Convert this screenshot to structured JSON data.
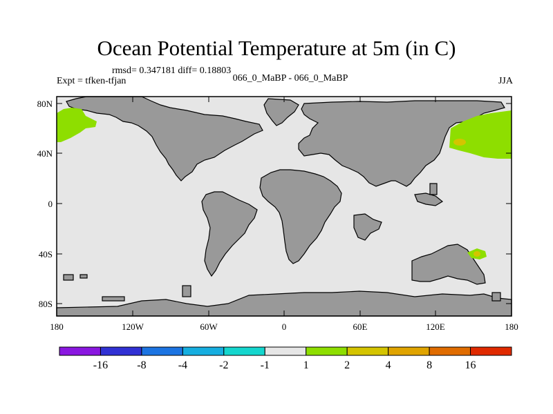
{
  "title": "Ocean Potential Temperature at 5m (in C)",
  "stats": "rmsd= 0.347181 diff= 0.18803",
  "experiment": "Expt = tfken-tfjan",
  "cases": "066_0_MaBP - 066_0_MaBP",
  "season": "JJA",
  "colors": {
    "ocean": "#e6e6e6",
    "land": "#999999",
    "positive": "#8ede00",
    "warm": "#d4c400"
  },
  "axes": {
    "lat_ticks": [
      "80N",
      "40N",
      "0",
      "40S",
      "80S"
    ],
    "lon_ticks": [
      "180",
      "120W",
      "60W",
      "0",
      "60E",
      "120E",
      "180"
    ]
  },
  "colorbar": {
    "colors": [
      "#8a17e0",
      "#3131d4",
      "#1c74e2",
      "#16aee0",
      "#14d6ce",
      "#e6e6e6",
      "#8ede00",
      "#d4c400",
      "#e0a400",
      "#e06c00",
      "#e02a00"
    ],
    "labels": [
      "-16",
      "-8",
      "-4",
      "-2",
      "-1",
      "1",
      "2",
      "4",
      "8",
      "16"
    ]
  }
}
